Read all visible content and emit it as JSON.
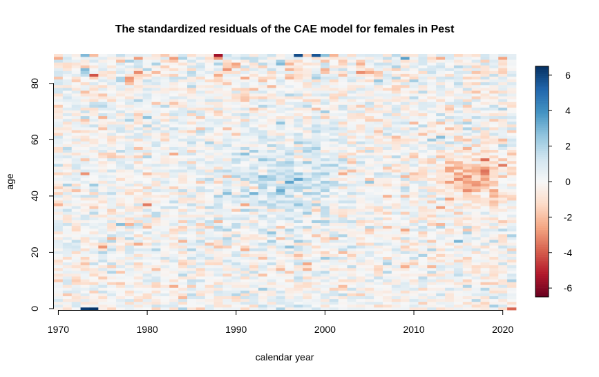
{
  "chart_data": {
    "type": "heatmap",
    "title": "The standardized residuals of the CAE model for females in Pest",
    "xlabel": "calendar year",
    "ylabel": "age",
    "x": {
      "min": 1970,
      "max": 2021,
      "ticks": [
        1970,
        1980,
        1990,
        2000,
        2010,
        2020
      ],
      "tick_labels": [
        "1970",
        "1980",
        "1990",
        "2000",
        "2010",
        "2020"
      ]
    },
    "y": {
      "min": 0,
      "max": 90,
      "ticks": [
        0,
        20,
        40,
        60,
        80
      ],
      "tick_labels": [
        "0",
        "20",
        "40",
        "60",
        "80"
      ]
    },
    "colorbar": {
      "min": -6.5,
      "max": 6.5,
      "ticks": [
        -6,
        -4,
        -2,
        0,
        2,
        4,
        6
      ],
      "tick_labels": [
        "-6",
        "-4",
        "-2",
        "0",
        "2",
        "4",
        "6"
      ],
      "palette": [
        "#67001f",
        "#b2182b",
        "#d6604d",
        "#f4a582",
        "#fddbc7",
        "#f7f7f7",
        "#d1e5f0",
        "#92c5de",
        "#4393c3",
        "#2166ac",
        "#053061"
      ]
    },
    "value_summary": {
      "typical_range": [
        -2,
        2
      ],
      "positive_region": {
        "years": [
          1988,
          2002
        ],
        "ages": [
          28,
          60
        ],
        "mean": 1.3
      },
      "negative_region": {
        "years": [
          2012,
          2021
        ],
        "ages": [
          38,
          55
        ],
        "mean": -2.4
      },
      "extreme_cells": [
        {
          "year": 1973,
          "age": 0,
          "value": 6.2
        },
        {
          "year": 1974,
          "age": 0,
          "value": 6.4
        },
        {
          "year": 1997,
          "age": 90,
          "value": 5.8
        },
        {
          "year": 1999,
          "age": 90,
          "value": 5.6
        },
        {
          "year": 1988,
          "age": 90,
          "value": -5.5
        },
        {
          "year": 2021,
          "age": 0,
          "value": -3.8
        }
      ]
    }
  }
}
